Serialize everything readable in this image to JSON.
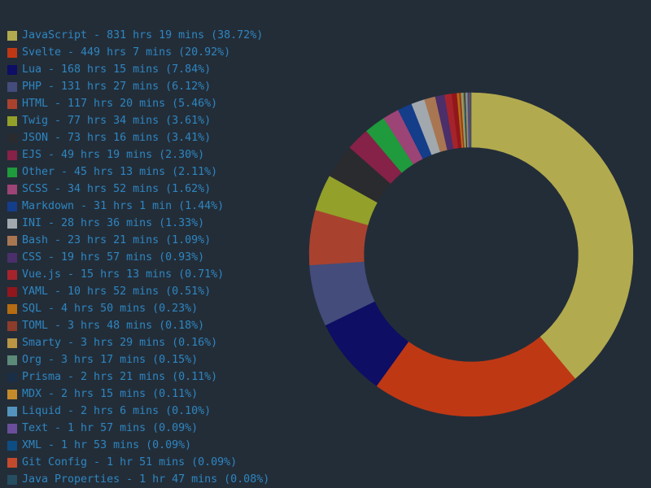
{
  "chart_data": {
    "type": "pie",
    "variant": "donut",
    "legend_position": "left",
    "series": [
      {
        "label": "JavaScript - 831 hrs 19 mins (38.72%)",
        "value": 38.72,
        "color": "#b2aa4e"
      },
      {
        "label": "Svelte - 449 hrs 7 mins (20.92%)",
        "value": 20.92,
        "color": "#bf3814"
      },
      {
        "label": "Lua - 168 hrs 15 mins (7.84%)",
        "value": 7.84,
        "color": "#0d0e64"
      },
      {
        "label": "PHP - 131 hrs 27 mins (6.12%)",
        "value": 6.12,
        "color": "#434c7b"
      },
      {
        "label": "HTML - 117 hrs 20 mins (5.46%)",
        "value": 5.46,
        "color": "#a8422f"
      },
      {
        "label": "Twig - 77 hrs 34 mins (3.61%)",
        "value": 3.61,
        "color": "#93a02a"
      },
      {
        "label": "JSON - 73 hrs 16 mins (3.41%)",
        "value": 3.41,
        "color": "#2a2b2e"
      },
      {
        "label": "EJS - 49 hrs 19 mins (2.30%)",
        "value": 2.3,
        "color": "#862147"
      },
      {
        "label": "Other - 45 hrs 13 mins (2.11%)",
        "value": 2.11,
        "color": "#1f9a3d"
      },
      {
        "label": "SCSS - 34 hrs 52 mins (1.62%)",
        "value": 1.62,
        "color": "#9c4476"
      },
      {
        "label": "Markdown - 31 hrs 1 min (1.44%)",
        "value": 1.44,
        "color": "#143d8a"
      },
      {
        "label": "INI - 28 hrs 36 mins (1.33%)",
        "value": 1.33,
        "color": "#a1a8ae"
      },
      {
        "label": "Bash - 23 hrs 21 mins (1.09%)",
        "value": 1.09,
        "color": "#a97652"
      },
      {
        "label": "CSS - 19 hrs 57 mins (0.93%)",
        "value": 0.93,
        "color": "#4a2f6b"
      },
      {
        "label": "Vue.js - 15 hrs 13 mins (0.71%)",
        "value": 0.71,
        "color": "#a5242c"
      },
      {
        "label": "YAML - 10 hrs 52 mins (0.51%)",
        "value": 0.51,
        "color": "#91171c"
      },
      {
        "label": "SQL - 4 hrs 50 mins (0.23%)",
        "value": 0.23,
        "color": "#b66c12"
      },
      {
        "label": "TOML - 3 hrs 48 mins (0.18%)",
        "value": 0.18,
        "color": "#8c3c2a"
      },
      {
        "label": "Smarty - 3 hrs 29 mins (0.16%)",
        "value": 0.16,
        "color": "#b99544"
      },
      {
        "label": "Org - 3 hrs 17 mins (0.15%)",
        "value": 0.15,
        "color": "#5c8978"
      },
      {
        "label": "Prisma - 2 hrs 21 mins (0.11%)",
        "value": 0.11,
        "color": "#1a2f45"
      },
      {
        "label": "MDX - 2 hrs 15 mins (0.11%)",
        "value": 0.11,
        "color": "#c58b2b"
      },
      {
        "label": "Liquid - 2 hrs 6 mins (0.10%)",
        "value": 0.1,
        "color": "#5493bd"
      },
      {
        "label": "Text - 1 hr 57 mins (0.09%)",
        "value": 0.09,
        "color": "#6a4e9b"
      },
      {
        "label": "XML - 1 hr 53 mins (0.09%)",
        "value": 0.09,
        "color": "#0d4d82"
      },
      {
        "label": "Git Config - 1 hr 51 mins (0.09%)",
        "value": 0.09,
        "color": "#c44a2e"
      },
      {
        "label": "Java Properties - 1 hr 47 mins (0.08%)",
        "value": 0.08,
        "color": "#264d60"
      }
    ]
  }
}
